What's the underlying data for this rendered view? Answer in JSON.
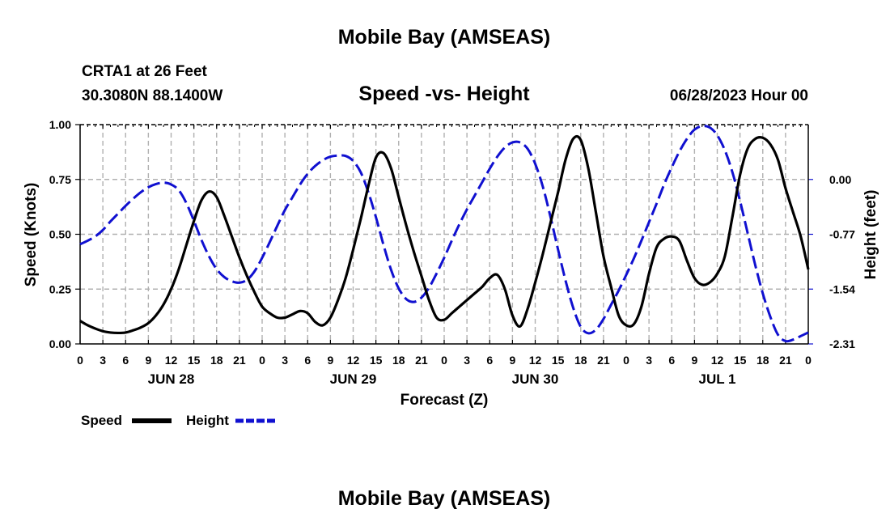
{
  "header": {
    "title": "Mobile Bay (AMSEAS)",
    "station": "CRTA1 at 26 Feet",
    "coords": "30.3080N  88.1400W",
    "datetime": "06/28/2023 Hour 00",
    "footer_title": "Mobile Bay (AMSEAS)"
  },
  "chart_data": {
    "type": "line",
    "title": "Speed -vs- Height",
    "xlabel": "Forecast (Z)",
    "ylabel": "Speed (Knots)",
    "y2label": "Height (feet)",
    "xlim": [
      0,
      96
    ],
    "ylim": [
      0,
      1
    ],
    "y2lim": [
      -2.31,
      0.77
    ],
    "x_tick_labels": [
      "0",
      "3",
      "6",
      "9",
      "12",
      "15",
      "18",
      "21",
      "0",
      "3",
      "6",
      "9",
      "12",
      "15",
      "18",
      "21",
      "0",
      "3",
      "6",
      "9",
      "12",
      "15",
      "18",
      "21",
      "0",
      "3",
      "6",
      "9",
      "12",
      "15",
      "18",
      "21",
      "0"
    ],
    "y_tick_labels": [
      "0.00",
      "0.25",
      "0.50",
      "0.75",
      "1.00"
    ],
    "y2_tick_labels": [
      "-2.31",
      "-1.54",
      "-0.77",
      "0.00"
    ],
    "day_labels": [
      {
        "label": "JUN 28",
        "hour": 12
      },
      {
        "label": "JUN 29",
        "hour": 36
      },
      {
        "label": "JUN 30",
        "hour": 60
      },
      {
        "label": "JUL 1",
        "hour": 84
      }
    ],
    "grid": true,
    "legend_position": "bottom-left",
    "series": [
      {
        "name": "Speed",
        "axis": "left",
        "color": "#000000",
        "style": "solid",
        "x": [
          0,
          1,
          2,
          3,
          4,
          5,
          6,
          7,
          8,
          9,
          10,
          11,
          12,
          13,
          14,
          15,
          16,
          17,
          18,
          19,
          20,
          21,
          22,
          23,
          24,
          25,
          26,
          27,
          28,
          29,
          30,
          31,
          32,
          33,
          34,
          35,
          36,
          37,
          38,
          39,
          40,
          41,
          42,
          43,
          44,
          45,
          46,
          47,
          48,
          49,
          50,
          51,
          52,
          53,
          54,
          55,
          56,
          57,
          58,
          59,
          60,
          61,
          62,
          63,
          64,
          65,
          66,
          67,
          68,
          69,
          70,
          71,
          72,
          73,
          74,
          75,
          76,
          77,
          78,
          79,
          80,
          81,
          82,
          83,
          84,
          85,
          86,
          87,
          88,
          89,
          90,
          91,
          92,
          93,
          94,
          95,
          96
        ],
        "values": [
          0.105,
          0.085,
          0.07,
          0.058,
          0.052,
          0.05,
          0.052,
          0.062,
          0.075,
          0.095,
          0.13,
          0.18,
          0.25,
          0.34,
          0.45,
          0.56,
          0.655,
          0.695,
          0.67,
          0.585,
          0.49,
          0.395,
          0.31,
          0.235,
          0.17,
          0.14,
          0.12,
          0.12,
          0.135,
          0.15,
          0.14,
          0.1,
          0.085,
          0.12,
          0.2,
          0.3,
          0.43,
          0.57,
          0.72,
          0.85,
          0.87,
          0.8,
          0.67,
          0.54,
          0.42,
          0.31,
          0.2,
          0.12,
          0.11,
          0.14,
          0.17,
          0.2,
          0.23,
          0.26,
          0.3,
          0.315,
          0.25,
          0.13,
          0.08,
          0.16,
          0.28,
          0.41,
          0.55,
          0.69,
          0.84,
          0.935,
          0.93,
          0.8,
          0.6,
          0.4,
          0.26,
          0.13,
          0.085,
          0.09,
          0.17,
          0.32,
          0.44,
          0.48,
          0.49,
          0.47,
          0.38,
          0.3,
          0.27,
          0.28,
          0.32,
          0.4,
          0.58,
          0.77,
          0.89,
          0.935,
          0.94,
          0.91,
          0.84,
          0.71,
          0.6,
          0.49,
          0.34
        ]
      },
      {
        "name": "Height",
        "axis": "right",
        "color": "#1010d0",
        "style": "dashed",
        "x": [
          0,
          1,
          2,
          3,
          4,
          5,
          6,
          7,
          8,
          9,
          10,
          11,
          12,
          13,
          14,
          15,
          16,
          17,
          18,
          19,
          20,
          21,
          22,
          23,
          24,
          25,
          26,
          27,
          28,
          29,
          30,
          31,
          32,
          33,
          34,
          35,
          36,
          37,
          38,
          39,
          40,
          41,
          42,
          43,
          44,
          45,
          46,
          47,
          48,
          49,
          50,
          51,
          52,
          53,
          54,
          55,
          56,
          57,
          58,
          59,
          60,
          61,
          62,
          63,
          64,
          65,
          66,
          67,
          68,
          69,
          70,
          71,
          72,
          73,
          74,
          75,
          76,
          77,
          78,
          79,
          80,
          81,
          82,
          83,
          84,
          85,
          86,
          87,
          88,
          89,
          90,
          91,
          92,
          93,
          94,
          95,
          96
        ],
        "values": [
          -0.91,
          -0.86,
          -0.8,
          -0.71,
          -0.59,
          -0.48,
          -0.37,
          -0.27,
          -0.18,
          -0.11,
          -0.065,
          -0.045,
          -0.07,
          -0.15,
          -0.33,
          -0.58,
          -0.85,
          -1.08,
          -1.26,
          -1.37,
          -1.43,
          -1.45,
          -1.41,
          -1.29,
          -1.1,
          -0.88,
          -0.65,
          -0.43,
          -0.25,
          -0.07,
          0.08,
          0.19,
          0.27,
          0.32,
          0.335,
          0.33,
          0.26,
          0.1,
          -0.18,
          -0.53,
          -0.92,
          -1.27,
          -1.53,
          -1.68,
          -1.72,
          -1.66,
          -1.52,
          -1.32,
          -1.1,
          -0.86,
          -0.63,
          -0.42,
          -0.23,
          -0.04,
          0.15,
          0.32,
          0.45,
          0.52,
          0.52,
          0.43,
          0.22,
          -0.1,
          -0.52,
          -0.98,
          -1.42,
          -1.8,
          -2.07,
          -2.16,
          -2.11,
          -1.96,
          -1.76,
          -1.56,
          -1.34,
          -1.11,
          -0.86,
          -0.6,
          -0.34,
          -0.07,
          0.17,
          0.39,
          0.57,
          0.7,
          0.75,
          0.73,
          0.62,
          0.41,
          0.1,
          -0.3,
          -0.75,
          -1.2,
          -1.6,
          -1.93,
          -2.18,
          -2.27,
          -2.25,
          -2.2,
          -2.15
        ]
      }
    ]
  }
}
